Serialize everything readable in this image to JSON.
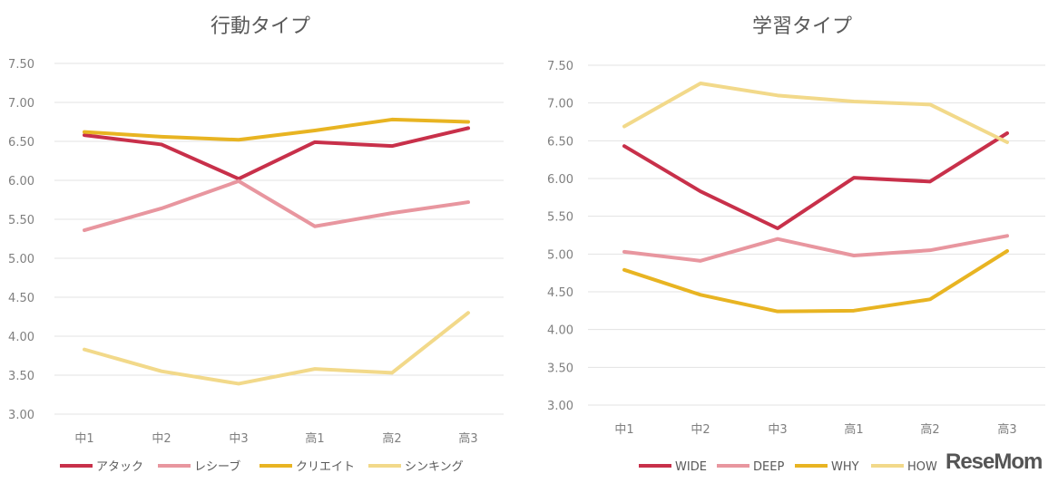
{
  "chart_data": [
    {
      "type": "line",
      "title": "行動タイプ",
      "categories": [
        "中1",
        "中2",
        "中3",
        "高1",
        "高2",
        "高3"
      ],
      "ylim": [
        3.0,
        7.5
      ],
      "yticks": [
        "3.00",
        "3.50",
        "4.00",
        "4.50",
        "5.00",
        "5.50",
        "6.00",
        "6.50",
        "7.00",
        "7.50"
      ],
      "grid": true,
      "legend": "bottom",
      "series": [
        {
          "name": "アタック",
          "color": "#c8304a",
          "values": [
            6.58,
            6.46,
            6.02,
            6.49,
            6.44,
            6.67
          ]
        },
        {
          "name": "レシーブ",
          "color": "#e8969f",
          "values": [
            5.36,
            5.64,
            5.99,
            5.41,
            5.58,
            5.72
          ]
        },
        {
          "name": "クリエイト",
          "color": "#e8b422",
          "values": [
            6.62,
            6.56,
            6.52,
            6.64,
            6.78,
            6.75
          ]
        },
        {
          "name": "シンキング",
          "color": "#f2d98a",
          "values": [
            3.83,
            3.55,
            3.39,
            3.58,
            3.53,
            4.3
          ]
        }
      ]
    },
    {
      "type": "line",
      "title": "学習タイプ",
      "categories": [
        "中1",
        "中2",
        "中3",
        "高1",
        "高2",
        "高3"
      ],
      "ylim": [
        3.0,
        7.5
      ],
      "yticks": [
        "3.00",
        "3.50",
        "4.00",
        "4.50",
        "5.00",
        "5.50",
        "6.00",
        "6.50",
        "7.00",
        "7.50"
      ],
      "grid": true,
      "legend": "bottom",
      "series": [
        {
          "name": "WIDE",
          "color": "#c8304a",
          "values": [
            6.43,
            5.83,
            5.34,
            6.01,
            5.96,
            6.6
          ]
        },
        {
          "name": "DEEP",
          "color": "#e8969f",
          "values": [
            5.03,
            4.91,
            5.2,
            4.98,
            5.05,
            5.24
          ]
        },
        {
          "name": "WHY",
          "color": "#e8b422",
          "values": [
            4.79,
            4.46,
            4.24,
            4.25,
            4.4,
            5.04
          ]
        },
        {
          "name": "HOW",
          "color": "#f2d98a",
          "values": [
            6.69,
            7.26,
            7.1,
            7.02,
            6.98,
            6.48
          ]
        }
      ]
    }
  ],
  "watermark": "ReseMom"
}
